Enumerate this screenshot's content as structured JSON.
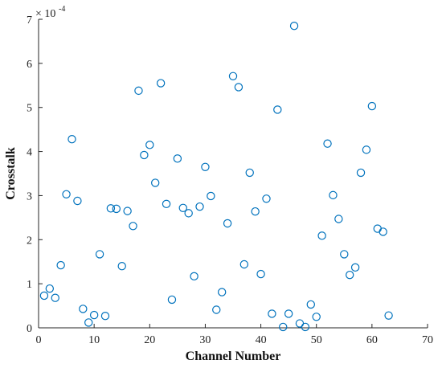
{
  "chart_data": {
    "type": "scatter",
    "xlabel": "Channel Number",
    "ylabel": "Crosstalk",
    "exponent_base": "× 10",
    "exponent_power": "-4",
    "xlim": [
      0,
      70
    ],
    "ylim": [
      0,
      7
    ],
    "xticks": [
      0,
      10,
      20,
      30,
      40,
      50,
      60,
      70
    ],
    "yticks": [
      0,
      1,
      2,
      3,
      4,
      5,
      6,
      7
    ],
    "grid": false,
    "marker_color": "#0072BD",
    "marker": "open-circle",
    "x": [
      1,
      2,
      3,
      4,
      5,
      6,
      7,
      8,
      9,
      10,
      11,
      12,
      13,
      14,
      15,
      16,
      17,
      18,
      19,
      20,
      21,
      22,
      23,
      24,
      25,
      26,
      27,
      28,
      29,
      30,
      31,
      32,
      33,
      34,
      35,
      36,
      37,
      38,
      39,
      40,
      41,
      42,
      43,
      44,
      45,
      46,
      47,
      48,
      49,
      50,
      51,
      52,
      53,
      54,
      55,
      56,
      57,
      58,
      59,
      60,
      61,
      62,
      63
    ],
    "y": [
      0.73,
      0.89,
      0.68,
      1.42,
      3.03,
      4.28,
      2.88,
      0.43,
      0.12,
      0.29,
      1.67,
      0.27,
      2.71,
      2.7,
      1.4,
      2.65,
      2.31,
      5.38,
      3.92,
      4.15,
      3.29,
      5.55,
      2.81,
      0.64,
      3.84,
      2.72,
      2.6,
      1.17,
      2.75,
      3.65,
      2.99,
      0.41,
      0.81,
      2.37,
      5.71,
      5.46,
      1.44,
      3.52,
      2.64,
      1.22,
      2.93,
      0.32,
      4.95,
      0.02,
      0.32,
      6.85,
      0.1,
      0.02,
      0.53,
      0.25,
      2.09,
      4.18,
      3.01,
      2.47,
      1.67,
      1.2,
      1.37,
      3.52,
      4.04,
      5.03,
      2.25,
      2.18,
      0.28
    ]
  }
}
